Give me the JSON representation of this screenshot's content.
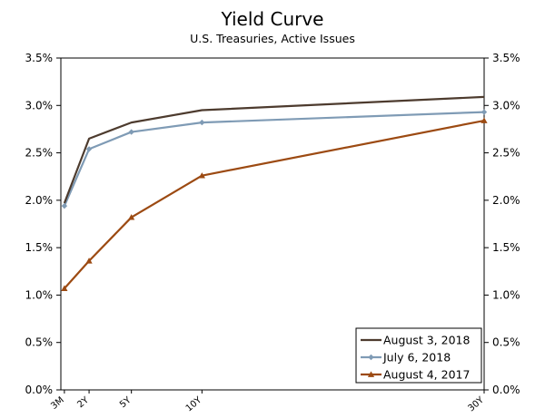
{
  "chart_data": {
    "type": "line",
    "title": "Yield Curve",
    "subtitle": "U.S. Treasuries, Active Issues",
    "xlabel": "",
    "ylabel": "",
    "categories": [
      "3M",
      "2Y",
      "5Y",
      "10Y",
      "30Y"
    ],
    "x_years": [
      0.25,
      2,
      5,
      10,
      30
    ],
    "ylim": [
      0,
      3.5
    ],
    "y_ticks": [
      "0.0%",
      "0.5%",
      "1.0%",
      "1.5%",
      "2.0%",
      "2.5%",
      "3.0%",
      "3.5%"
    ],
    "grid": false,
    "legend_position": "bottom-right",
    "series": [
      {
        "name": "August 3, 2018",
        "values": [
          1.97,
          2.65,
          2.82,
          2.95,
          3.09
        ],
        "color": "#4d3b2e",
        "marker": "none"
      },
      {
        "name": "July 6, 2018",
        "values": [
          1.94,
          2.54,
          2.72,
          2.82,
          2.93
        ],
        "color": "#7f9bb5",
        "marker": "diamond"
      },
      {
        "name": "August 4, 2017",
        "values": [
          1.07,
          1.36,
          1.82,
          2.26,
          2.84
        ],
        "color": "#9c4a12",
        "marker": "triangle"
      }
    ]
  }
}
